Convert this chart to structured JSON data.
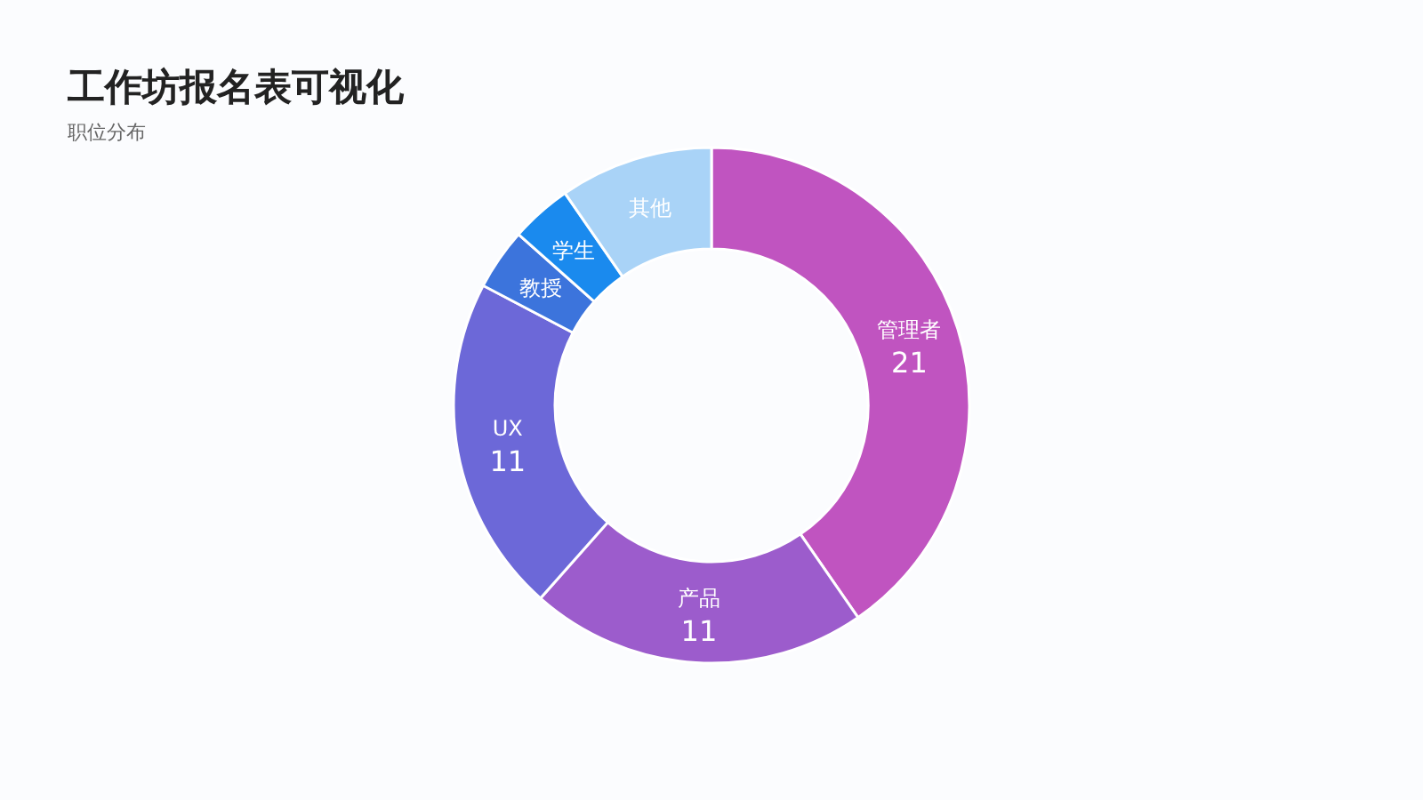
{
  "chart_data": {
    "type": "donut",
    "title": "工作坊报名表可视化",
    "subtitle": "职位分布",
    "categories": [
      "管理者",
      "产品",
      "UX",
      "教授",
      "学生",
      "其他"
    ],
    "values": [
      21,
      11,
      11,
      2,
      2,
      5
    ],
    "colors": [
      "#c054c0",
      "#9c5ccc",
      "#6c68d8",
      "#3c74dc",
      "#1a8aee",
      "#a9d3f7"
    ],
    "value_labels": [
      "21",
      "11",
      "11",
      null,
      null,
      null
    ]
  }
}
